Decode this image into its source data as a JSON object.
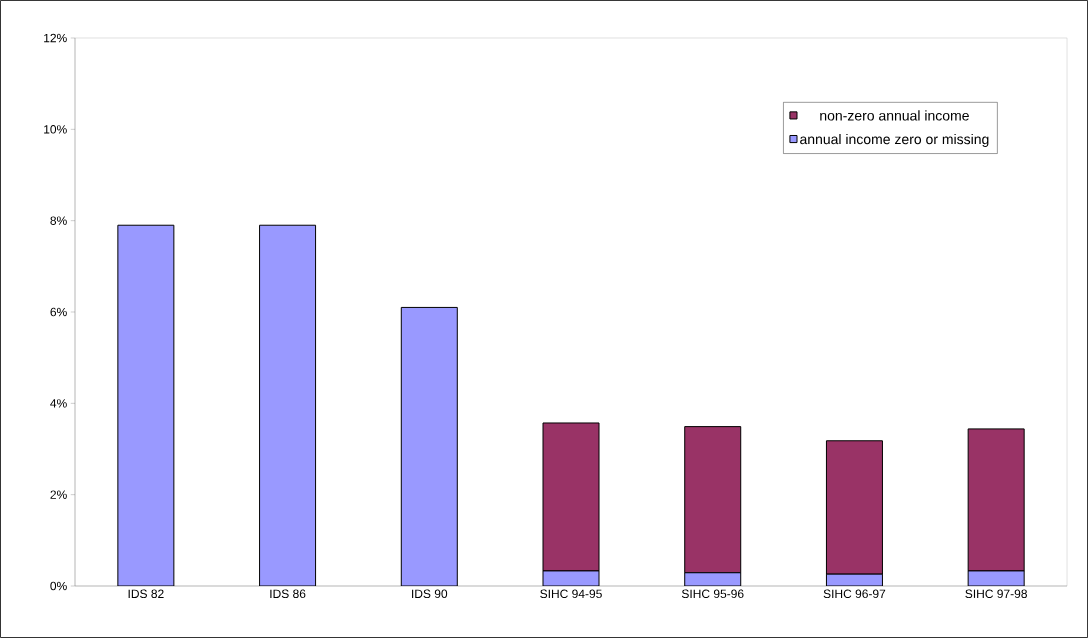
{
  "chart_data": {
    "type": "bar",
    "stacked": true,
    "categories": [
      "IDS 82",
      "IDS 86",
      "IDS 90",
      "SIHC 94-95",
      "SIHC 95-96",
      "SIHC 96-97",
      "SIHC 97-98"
    ],
    "series": [
      {
        "name": "annual income zero or missing",
        "color": "#9999ff",
        "values": [
          7.9,
          7.9,
          6.1,
          0.33,
          0.29,
          0.26,
          0.33
        ]
      },
      {
        "name": "non-zero annual income",
        "color": "#993366",
        "values": [
          0,
          0,
          0,
          3.24,
          3.2,
          2.92,
          3.11
        ]
      }
    ],
    "ylim": [
      0,
      12
    ],
    "yticks": [
      {
        "value": 0,
        "label": "0%"
      },
      {
        "value": 2,
        "label": "2%"
      },
      {
        "value": 4,
        "label": "4%"
      },
      {
        "value": 6,
        "label": "6%"
      },
      {
        "value": 8,
        "label": "8%"
      },
      {
        "value": 10,
        "label": "10%"
      },
      {
        "value": 12,
        "label": "12%"
      }
    ],
    "legend": "top right"
  }
}
